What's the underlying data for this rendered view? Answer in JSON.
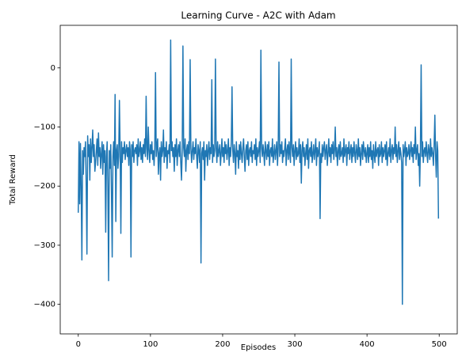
{
  "chart_data": {
    "type": "line",
    "title": "Learning Curve - A2C with Adam",
    "x_label": "Episodes",
    "y_label": "Total Reward",
    "color": "#1f77b4",
    "xlim": [
      -25,
      525
    ],
    "ylim": [
      -450,
      72
    ],
    "xticks": [
      0,
      100,
      200,
      300,
      400,
      500
    ],
    "yticks": [
      {
        "value": -400,
        "label": "−400"
      },
      {
        "value": -300,
        "label": "−300"
      },
      {
        "value": -200,
        "label": "−200"
      },
      {
        "value": -100,
        "label": "−100"
      },
      0
    ],
    "x": [
      0,
      1,
      2,
      3,
      4,
      5,
      6,
      7,
      8,
      9,
      10,
      11,
      12,
      13,
      14,
      15,
      16,
      17,
      18,
      19,
      20,
      21,
      22,
      23,
      24,
      25,
      26,
      27,
      28,
      29,
      30,
      31,
      32,
      33,
      34,
      35,
      36,
      37,
      38,
      39,
      40,
      41,
      42,
      43,
      44,
      45,
      46,
      47,
      48,
      49,
      50,
      51,
      52,
      53,
      54,
      55,
      56,
      57,
      58,
      59,
      60,
      61,
      62,
      63,
      64,
      65,
      66,
      67,
      68,
      69,
      70,
      71,
      72,
      73,
      74,
      75,
      76,
      77,
      78,
      79,
      80,
      81,
      82,
      83,
      84,
      85,
      86,
      87,
      88,
      89,
      90,
      91,
      92,
      93,
      94,
      95,
      96,
      97,
      98,
      99,
      100,
      101,
      102,
      103,
      104,
      105,
      106,
      107,
      108,
      109,
      110,
      111,
      112,
      113,
      114,
      115,
      116,
      117,
      118,
      119,
      120,
      121,
      122,
      123,
      124,
      125,
      126,
      127,
      128,
      129,
      130,
      131,
      132,
      133,
      134,
      135,
      136,
      137,
      138,
      139,
      140,
      141,
      142,
      143,
      144,
      145,
      146,
      147,
      148,
      149,
      150,
      151,
      152,
      153,
      154,
      155,
      156,
      157,
      158,
      159,
      160,
      161,
      162,
      163,
      164,
      165,
      166,
      167,
      168,
      169,
      170,
      171,
      172,
      173,
      174,
      175,
      176,
      177,
      178,
      179,
      180,
      181,
      182,
      183,
      184,
      185,
      186,
      187,
      188,
      189,
      190,
      191,
      192,
      193,
      194,
      195,
      196,
      197,
      198,
      199,
      200,
      201,
      202,
      203,
      204,
      205,
      206,
      207,
      208,
      209,
      210,
      211,
      212,
      213,
      214,
      215,
      216,
      217,
      218,
      219,
      220,
      221,
      222,
      223,
      224,
      225,
      226,
      227,
      228,
      229,
      230,
      231,
      232,
      233,
      234,
      235,
      236,
      237,
      238,
      239,
      240,
      241,
      242,
      243,
      244,
      245,
      246,
      247,
      248,
      249,
      250,
      251,
      252,
      253,
      254,
      255,
      256,
      257,
      258,
      259,
      260,
      261,
      262,
      263,
      264,
      265,
      266,
      267,
      268,
      269,
      270,
      271,
      272,
      273,
      274,
      275,
      276,
      277,
      278,
      279,
      280,
      281,
      282,
      283,
      284,
      285,
      286,
      287,
      288,
      289,
      290,
      291,
      292,
      293,
      294,
      295,
      296,
      297,
      298,
      299,
      300,
      301,
      302,
      303,
      304,
      305,
      306,
      307,
      308,
      309,
      310,
      311,
      312,
      313,
      314,
      315,
      316,
      317,
      318,
      319,
      320,
      321,
      322,
      323,
      324,
      325,
      326,
      327,
      328,
      329,
      330,
      331,
      332,
      333,
      334,
      335,
      336,
      337,
      338,
      339,
      340,
      341,
      342,
      343,
      344,
      345,
      346,
      347,
      348,
      349,
      350,
      351,
      352,
      353,
      354,
      355,
      356,
      357,
      358,
      359,
      360,
      361,
      362,
      363,
      364,
      365,
      366,
      367,
      368,
      369,
      370,
      371,
      372,
      373,
      374,
      375,
      376,
      377,
      378,
      379,
      380,
      381,
      382,
      383,
      384,
      385,
      386,
      387,
      388,
      389,
      390,
      391,
      392,
      393,
      394,
      395,
      396,
      397,
      398,
      399,
      400,
      401,
      402,
      403,
      404,
      405,
      406,
      407,
      408,
      409,
      410,
      411,
      412,
      413,
      414,
      415,
      416,
      417,
      418,
      419,
      420,
      421,
      422,
      423,
      424,
      425,
      426,
      427,
      428,
      429,
      430,
      431,
      432,
      433,
      434,
      435,
      436,
      437,
      438,
      439,
      440,
      441,
      442,
      443,
      444,
      445,
      446,
      447,
      448,
      449,
      450,
      451,
      452,
      453,
      454,
      455,
      456,
      457,
      458,
      459,
      460,
      461,
      462,
      463,
      464,
      465,
      466,
      467,
      468,
      469,
      470,
      471,
      472,
      473,
      474,
      475,
      476,
      477,
      478,
      479,
      480,
      481,
      482,
      483,
      484,
      485,
      486,
      487,
      488,
      489,
      490,
      491,
      492,
      493,
      494,
      495,
      496,
      497,
      498,
      499
    ],
    "values": [
      -245,
      -125,
      -230,
      -128,
      -200,
      -325,
      -140,
      -180,
      -135,
      -150,
      -125,
      -200,
      -315,
      -115,
      -150,
      -130,
      -190,
      -120,
      -160,
      -135,
      -105,
      -150,
      -130,
      -175,
      -160,
      -140,
      -120,
      -165,
      -110,
      -150,
      -135,
      -170,
      -145,
      -125,
      -180,
      -130,
      -160,
      -140,
      -278,
      -150,
      -125,
      -200,
      -360,
      -140,
      -170,
      -130,
      -210,
      -320,
      -150,
      -125,
      -165,
      -45,
      -260,
      -140,
      -130,
      -170,
      -150,
      -55,
      -140,
      -280,
      -125,
      -160,
      -135,
      -145,
      -125,
      -155,
      -140,
      -130,
      -150,
      -135,
      -165,
      -125,
      -140,
      -320,
      -130,
      -150,
      -125,
      -160,
      -140,
      -135,
      -145,
      -130,
      -165,
      -120,
      -150,
      -140,
      -125,
      -155,
      -135,
      -160,
      -130,
      -145,
      -120,
      -150,
      -48,
      -135,
      -155,
      -100,
      -140,
      -160,
      -130,
      -145,
      -125,
      -155,
      -140,
      -165,
      -135,
      -8,
      -150,
      -130,
      -120,
      -180,
      -145,
      -135,
      -190,
      -125,
      -150,
      -140,
      -105,
      -160,
      -135,
      -150,
      -125,
      -170,
      -140,
      -145,
      -130,
      -160,
      47,
      -140,
      -125,
      -150,
      -135,
      -175,
      -130,
      -150,
      -120,
      -165,
      -140,
      -130,
      -150,
      -125,
      -160,
      -190,
      -140,
      37,
      -135,
      -150,
      -120,
      -175,
      -140,
      -130,
      -155,
      -125,
      -145,
      14,
      -135,
      -160,
      -140,
      -125,
      -155,
      -135,
      -145,
      -120,
      -150,
      -170,
      -130,
      -140,
      -160,
      -125,
      -330,
      -145,
      -135,
      -155,
      -125,
      -190,
      -140,
      -150,
      -130,
      -165,
      -140,
      -125,
      -155,
      -135,
      -145,
      -20,
      -160,
      -130,
      -150,
      -140,
      15,
      -135,
      -160,
      -125,
      -150,
      -140,
      -130,
      -165,
      -145,
      -120,
      -150,
      -135,
      -160,
      -125,
      -145,
      -130,
      -155,
      -140,
      -120,
      -165,
      -135,
      -150,
      -125,
      -32,
      -140,
      -160,
      -130,
      -145,
      -180,
      -125,
      -150,
      -140,
      -170,
      -130,
      -155,
      -125,
      -145,
      -160,
      -135,
      -120,
      -150,
      -175,
      -140,
      -130,
      -155,
      -125,
      -165,
      -140,
      -135,
      -150,
      -125,
      -160,
      -140,
      -145,
      -130,
      -155,
      -120,
      -165,
      -135,
      -150,
      -140,
      -125,
      -160,
      30,
      -135,
      -150,
      -130,
      -145,
      -165,
      -125,
      -140,
      -155,
      -130,
      -150,
      -125,
      -165,
      -140,
      -135,
      -150,
      -120,
      -160,
      -145,
      -130,
      -155,
      -140,
      -125,
      -165,
      -135,
      10,
      -150,
      -130,
      -145,
      -125,
      -160,
      -140,
      -150,
      -135,
      -120,
      -165,
      -140,
      -130,
      -155,
      -125,
      -145,
      -160,
      15,
      -135,
      -150,
      -130,
      -165,
      -140,
      -125,
      -155,
      -135,
      -150,
      -145,
      -120,
      -160,
      -130,
      -195,
      -140,
      -125,
      -150,
      -135,
      -165,
      -145,
      -130,
      -155,
      -120,
      -170,
      -140,
      -135,
      -150,
      -125,
      -160,
      -145,
      -130,
      -155,
      -140,
      -120,
      -165,
      -135,
      -150,
      -140,
      -125,
      -255,
      -145,
      -160,
      -130,
      -150,
      -135,
      -125,
      -155,
      -140,
      -130,
      -165,
      -145,
      -120,
      -150,
      -135,
      -160,
      -130,
      -145,
      -125,
      -155,
      -140,
      -100,
      -150,
      -135,
      -165,
      -140,
      -130,
      -155,
      -125,
      -150,
      -145,
      -135,
      -160,
      -120,
      -150,
      -140,
      -130,
      -165,
      -135,
      -145,
      -125,
      -155,
      -140,
      -130,
      -160,
      -135,
      -150,
      -125,
      -145,
      -160,
      -130,
      -140,
      -155,
      -120,
      -150,
      -135,
      -165,
      -145,
      -130,
      -155,
      -125,
      -140,
      -150,
      -135,
      -160,
      -145,
      -130,
      -160,
      -135,
      -150,
      -125,
      -155,
      -140,
      -170,
      -130,
      -145,
      -160,
      -125,
      -150,
      -140,
      -135,
      -165,
      -130,
      -150,
      -145,
      -125,
      -160,
      -135,
      -150,
      -140,
      -130,
      -155,
      -125,
      -165,
      -145,
      -135,
      -150,
      -120,
      -160,
      -140,
      -130,
      -155,
      -135,
      -145,
      -100,
      -150,
      -130,
      -160,
      -140,
      -125,
      -155,
      -135,
      -145,
      -160,
      -400,
      -130,
      -150,
      -140,
      -125,
      -165,
      -135,
      -150,
      -145,
      -130,
      -155,
      -140,
      -125,
      -150,
      -135,
      -160,
      -130,
      -145,
      -100,
      -155,
      -140,
      -130,
      -165,
      -145,
      -200,
      -135,
      5,
      -150,
      -125,
      -160,
      -140,
      -135,
      -150,
      -125,
      -145,
      -160,
      -130,
      -140,
      -155,
      -120,
      -150,
      -135,
      -145,
      -165,
      -130,
      -80,
      -150,
      -185,
      -125,
      -140,
      -255
    ]
  }
}
